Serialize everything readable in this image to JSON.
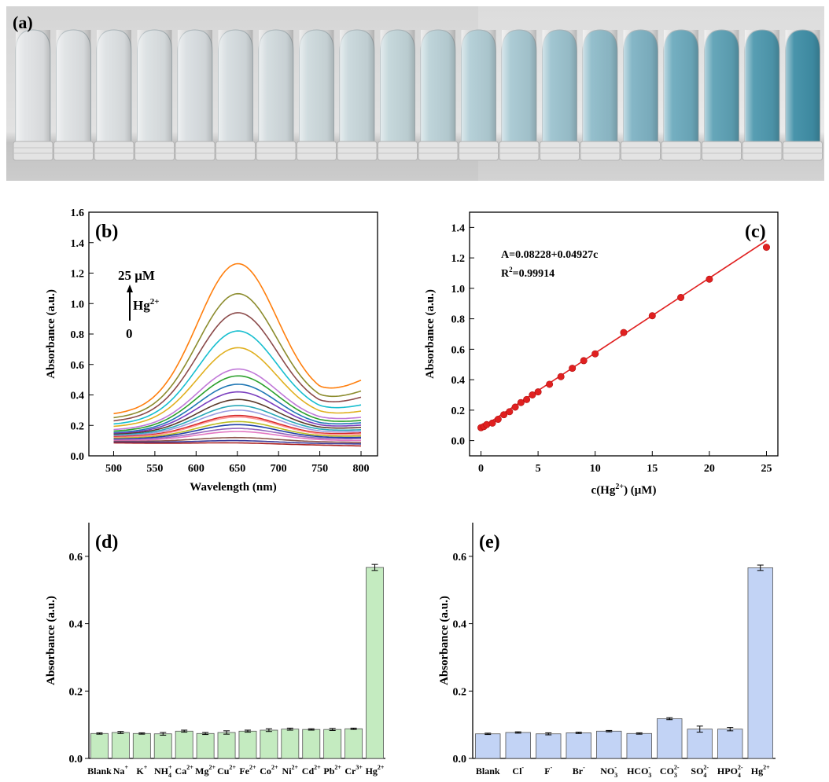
{
  "panel_a": {
    "label": "(a)",
    "tube_colors": [
      "#e2e4e6",
      "#e0e3e5",
      "#dee2e4",
      "#dce1e3",
      "#dadfe2",
      "#d6dde0",
      "#d2dbde",
      "#cedadd",
      "#c9d8dc",
      "#c3d6da",
      "#bbd2d8",
      "#b2ced6",
      "#a8c9d3",
      "#9cc3cf",
      "#8fbcca",
      "#7fb3c4",
      "#6dabbe",
      "#5ea2b6",
      "#4f99af",
      "#408fa7"
    ]
  },
  "chart_data": [
    {
      "id": "b",
      "panel_label": "(b)",
      "type": "line",
      "xlabel": "Wavelength (nm)",
      "ylabel": "Absorbance (a.u.)",
      "xlim": [
        470,
        820
      ],
      "ylim": [
        0,
        1.6
      ],
      "xticks": [
        "500",
        "550",
        "600",
        "650",
        "700",
        "750",
        "800"
      ],
      "yticks": [
        "0.0",
        "0.2",
        "0.4",
        "0.6",
        "0.8",
        "1.0",
        "1.2",
        "1.4",
        "1.6"
      ],
      "annotation_top": "25 μM",
      "annotation_ion": "Hg",
      "annotation_ion_sup": "2+",
      "annotation_bottom": "0",
      "curve_shape": {
        "center": 650,
        "sigma": 48
      },
      "series": [
        {
          "peak": 1.262,
          "baseline_500": 0.27,
          "value_750": 0.35,
          "value_800": 0.49,
          "color": "#ff7f0e"
        },
        {
          "peak": 1.065,
          "baseline_500": 0.245,
          "value_750": 0.315,
          "value_800": 0.42,
          "color": "#8c8c2e"
        },
        {
          "peak": 0.94,
          "baseline_500": 0.225,
          "value_750": 0.29,
          "value_800": 0.38,
          "color": "#8b4a4a"
        },
        {
          "peak": 0.82,
          "baseline_500": 0.205,
          "value_750": 0.265,
          "value_800": 0.33,
          "color": "#17becf"
        },
        {
          "peak": 0.71,
          "baseline_500": 0.19,
          "value_750": 0.24,
          "value_800": 0.29,
          "color": "#e0b020"
        },
        {
          "peak": 0.57,
          "baseline_500": 0.17,
          "value_750": 0.215,
          "value_800": 0.25,
          "color": "#c078d8"
        },
        {
          "peak": 0.525,
          "baseline_500": 0.16,
          "value_750": 0.2,
          "value_800": 0.23,
          "color": "#2ca02c"
        },
        {
          "peak": 0.47,
          "baseline_500": 0.15,
          "value_750": 0.185,
          "value_800": 0.215,
          "color": "#1f77b4"
        },
        {
          "peak": 0.42,
          "baseline_500": 0.145,
          "value_750": 0.175,
          "value_800": 0.2,
          "color": "#7a3fbf"
        },
        {
          "peak": 0.37,
          "baseline_500": 0.14,
          "value_750": 0.165,
          "value_800": 0.185,
          "color": "#5a3a2a"
        },
        {
          "peak": 0.33,
          "baseline_500": 0.135,
          "value_750": 0.155,
          "value_800": 0.17,
          "color": "#2aa8b8"
        },
        {
          "peak": 0.3,
          "baseline_500": 0.13,
          "value_750": 0.145,
          "value_800": 0.16,
          "color": "#9c9ce0"
        },
        {
          "peak": 0.265,
          "baseline_500": 0.125,
          "value_750": 0.135,
          "value_800": 0.15,
          "color": "#d62728"
        },
        {
          "peak": 0.255,
          "baseline_500": 0.12,
          "value_750": 0.13,
          "value_800": 0.14,
          "color": "#ff9896"
        },
        {
          "peak": 0.225,
          "baseline_500": 0.115,
          "value_750": 0.122,
          "value_800": 0.13,
          "color": "#bcbd22"
        },
        {
          "peak": 0.205,
          "baseline_500": 0.11,
          "value_750": 0.115,
          "value_800": 0.12,
          "color": "#1f3fa8"
        },
        {
          "peak": 0.18,
          "baseline_500": 0.105,
          "value_750": 0.108,
          "value_800": 0.112,
          "color": "#9467bd"
        },
        {
          "peak": 0.16,
          "baseline_500": 0.1,
          "value_750": 0.1,
          "value_800": 0.1,
          "color": "#e377c2"
        },
        {
          "peak": 0.12,
          "baseline_500": 0.095,
          "value_750": 0.09,
          "value_800": 0.088,
          "color": "#8c564b"
        },
        {
          "peak": 0.1,
          "baseline_500": 0.09,
          "value_750": 0.08,
          "value_800": 0.078,
          "color": "#3a3a9a"
        },
        {
          "peak": 0.085,
          "baseline_500": 0.085,
          "value_750": 0.07,
          "value_800": 0.065,
          "color": "#aa2222"
        }
      ]
    },
    {
      "id": "c",
      "panel_label": "(c)",
      "type": "scatter",
      "xlabel_pre": "c(Hg",
      "xlabel_sup": "2+",
      "xlabel_post": ") (μM)",
      "ylabel": "Absorbance (a.u.)",
      "xlim": [
        -1,
        26
      ],
      "ylim": [
        -0.1,
        1.5
      ],
      "xticks": [
        "0",
        "5",
        "10",
        "15",
        "20",
        "25"
      ],
      "yticks": [
        "0.0",
        "0.2",
        "0.4",
        "0.6",
        "0.8",
        "1.0",
        "1.2",
        "1.4"
      ],
      "equation": "A=0.08228+0.04927c",
      "r2_pre": "R",
      "r2_sup": "2",
      "r2_post": "=0.99914",
      "fit": {
        "intercept": 0.08228,
        "slope": 0.04927
      },
      "point_color": "#e02020",
      "x": [
        0,
        0.25,
        0.5,
        1,
        1.5,
        2,
        2.5,
        3,
        3.5,
        4,
        4.5,
        5,
        6,
        7,
        8,
        9,
        10,
        12.5,
        15,
        17.5,
        20,
        25
      ],
      "y": [
        0.085,
        0.092,
        0.105,
        0.115,
        0.14,
        0.17,
        0.19,
        0.22,
        0.25,
        0.27,
        0.3,
        0.32,
        0.37,
        0.42,
        0.475,
        0.525,
        0.57,
        0.71,
        0.82,
        0.94,
        1.06,
        1.27
      ]
    },
    {
      "id": "d",
      "panel_label": "(d)",
      "type": "bar",
      "ylabel": "Absorbance (a.u.)",
      "ylim": [
        0,
        0.7
      ],
      "yticks": [
        "0.0",
        "0.2",
        "0.4",
        "0.6"
      ],
      "bar_color": "#c4ebc0",
      "bar_edge": "#555555",
      "categories": [
        {
          "base": "Blank",
          "sup": "",
          "sub": ""
        },
        {
          "base": "Na",
          "sup": "+",
          "sub": ""
        },
        {
          "base": "K",
          "sup": "+",
          "sub": ""
        },
        {
          "base": "NH",
          "sup": "+",
          "sub": "4"
        },
        {
          "base": "Ca",
          "sup": "2+",
          "sub": ""
        },
        {
          "base": "Mg",
          "sup": "2+",
          "sub": ""
        },
        {
          "base": "Cu",
          "sup": "2+",
          "sub": ""
        },
        {
          "base": "Fe",
          "sup": "2+",
          "sub": ""
        },
        {
          "base": "Co",
          "sup": "2+",
          "sub": ""
        },
        {
          "base": "Ni",
          "sup": "2+",
          "sub": ""
        },
        {
          "base": "Cd",
          "sup": "2+",
          "sub": ""
        },
        {
          "base": "Pb",
          "sup": "2+",
          "sub": ""
        },
        {
          "base": "Cr",
          "sup": "3+",
          "sub": ""
        },
        {
          "base": "Hg",
          "sup": "2+",
          "sub": ""
        }
      ],
      "values": [
        0.074,
        0.077,
        0.074,
        0.073,
        0.081,
        0.074,
        0.077,
        0.081,
        0.084,
        0.087,
        0.086,
        0.086,
        0.088,
        0.567
      ],
      "errors": [
        0.002,
        0.003,
        0.002,
        0.004,
        0.003,
        0.003,
        0.005,
        0.003,
        0.004,
        0.003,
        0.002,
        0.003,
        0.002,
        0.009
      ]
    },
    {
      "id": "e",
      "panel_label": "(e)",
      "type": "bar",
      "ylabel": "Absorbance (a.u.)",
      "ylim": [
        0,
        0.7
      ],
      "yticks": [
        "0.0",
        "0.2",
        "0.4",
        "0.6"
      ],
      "bar_color": "#c2d3f5",
      "bar_edge": "#555555",
      "categories": [
        {
          "base": "Blank",
          "sup": "",
          "sub": ""
        },
        {
          "base": "Cl",
          "sup": "-",
          "sub": ""
        },
        {
          "base": "F",
          "sup": "-",
          "sub": ""
        },
        {
          "base": "Br",
          "sup": "-",
          "sub": ""
        },
        {
          "base": "NO",
          "sup": "-",
          "sub": "3"
        },
        {
          "base": "HCO",
          "sup": "-",
          "sub": "3"
        },
        {
          "base": "CO",
          "sup": "2-",
          "sub": "3"
        },
        {
          "base": "SO",
          "sup": "2-",
          "sub": "4"
        },
        {
          "base": "HPO",
          "sup": "2-",
          "sub": "4"
        },
        {
          "base": "Hg",
          "sup": "2+",
          "sub": ""
        }
      ],
      "values": [
        0.073,
        0.077,
        0.073,
        0.076,
        0.081,
        0.074,
        0.118,
        0.087,
        0.087,
        0.566
      ],
      "errors": [
        0.002,
        0.002,
        0.003,
        0.002,
        0.002,
        0.002,
        0.003,
        0.009,
        0.005,
        0.008
      ]
    }
  ]
}
